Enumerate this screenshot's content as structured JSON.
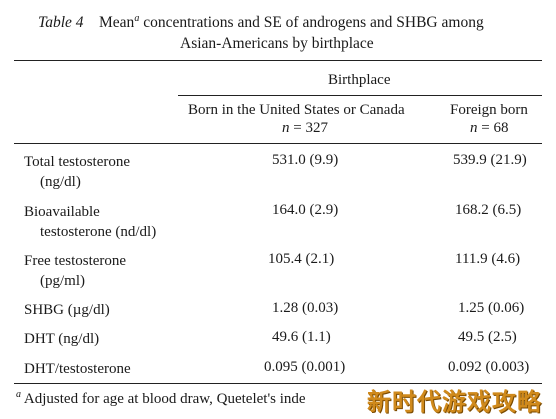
{
  "title": {
    "table_label": "Table 4",
    "line1_before_sup": "Mean",
    "sup": "a",
    "line1_after_sup": " concentrations and SE of androgens and SHBG among",
    "line2": "Asian-Americans by birthplace"
  },
  "header": {
    "group_label": "Birthplace",
    "columns": [
      {
        "label": "Born in the United States or Canada",
        "n_label": "n",
        "n_value": "= 327"
      },
      {
        "label": "Foreign born",
        "n_label": "n",
        "n_value": "= 68"
      }
    ]
  },
  "rows": [
    {
      "label_line1": "Total testosterone",
      "label_line2": "(ng/dl)",
      "us": "531.0 (9.9)",
      "foreign": "539.9 (21.9)"
    },
    {
      "label_line1": "Bioavailable",
      "label_line2": "testosterone (nd/dl)",
      "us": "164.0 (2.9)",
      "foreign": "168.2 (6.5)"
    },
    {
      "label_line1": "Free testosterone",
      "label_line2": "(pg/ml)",
      "us": "105.4 (2.1)",
      "foreign": "111.9 (4.6)"
    },
    {
      "label_line1": "SHBG (µg/dl)",
      "label_line2": "",
      "us": "1.28 (0.03)",
      "foreign": "1.25 (0.06)"
    },
    {
      "label_line1": "DHT (ng/dl)",
      "label_line2": "",
      "us": "49.6 (1.1)",
      "foreign": "49.5 (2.5)"
    },
    {
      "label_line1": "DHT/testosterone",
      "label_line2": "",
      "us": "0.095 (0.001)",
      "foreign": "0.092 (0.003)"
    }
  ],
  "footnote": {
    "marker": "a",
    "text": " Adjusted for age at blood draw, Quetelet's inde"
  },
  "watermark": {
    "text": "新时代游戏攻略",
    "color": "#d08a1c"
  }
}
